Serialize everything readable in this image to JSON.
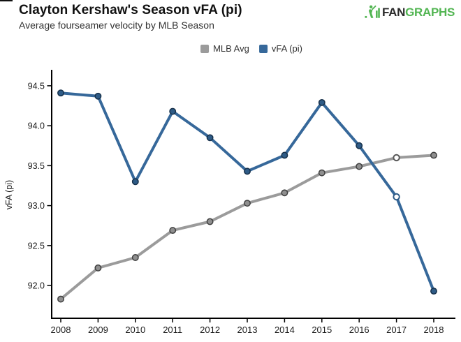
{
  "header": {
    "title": "Clayton Kershaw's Season vFA (pi)",
    "subtitle": "Average fourseamer velocity by MLB Season",
    "logo": {
      "fan": "FAN",
      "graphs": "GRAPHS",
      "green": "#52b552",
      "dark": "#2b2b2b"
    }
  },
  "legend": [
    {
      "label": "MLB Avg",
      "color": "#9b9b9b"
    },
    {
      "label": "vFA (pi)",
      "color": "#36689a"
    }
  ],
  "chart_data": {
    "type": "line",
    "title": "Clayton Kershaw's Season vFA (pi)",
    "subtitle": "Average fourseamer velocity by MLB Season",
    "x": [
      2008,
      2009,
      2010,
      2011,
      2012,
      2013,
      2014,
      2015,
      2016,
      2017,
      2018
    ],
    "xtick_labels": [
      "2008",
      "2009",
      "2010",
      "2011",
      "2012",
      "2013",
      "2014",
      "2015",
      "2016",
      "2017",
      "2018"
    ],
    "series": [
      {
        "id": "mlb-avg",
        "name": "MLB Avg",
        "color": "#9b9b9b",
        "marker_fill": "#8f8f8f",
        "marker_stroke": "#3f3f3f",
        "open_marker_stroke": "#5a5a5a",
        "open_marker_x": [
          2017
        ],
        "values": [
          91.83,
          92.22,
          92.35,
          92.69,
          92.8,
          93.03,
          93.16,
          93.41,
          93.49,
          93.6,
          93.63
        ]
      },
      {
        "id": "vfa-pi",
        "name": "vFA (pi)",
        "color": "#36689a",
        "marker_fill": "#2e5b86",
        "marker_stroke": "#16304a",
        "open_marker_stroke": "#2e5b86",
        "open_marker_x": [
          2017
        ],
        "values": [
          94.41,
          94.37,
          93.3,
          94.18,
          93.85,
          93.43,
          93.63,
          94.29,
          93.75,
          93.11,
          91.93
        ]
      }
    ],
    "xlabel": "",
    "ylabel": "vFA (pi)",
    "yticks": [
      92.0,
      92.5,
      93.0,
      93.5,
      94.0,
      94.5
    ],
    "ytick_labels": [
      "92.0",
      "92.5",
      "93.0",
      "93.5",
      "94.0",
      "94.5"
    ],
    "ylim": [
      91.59,
      94.7
    ],
    "axis_color": "#000000",
    "grid": false,
    "legend_position": "top-center"
  }
}
